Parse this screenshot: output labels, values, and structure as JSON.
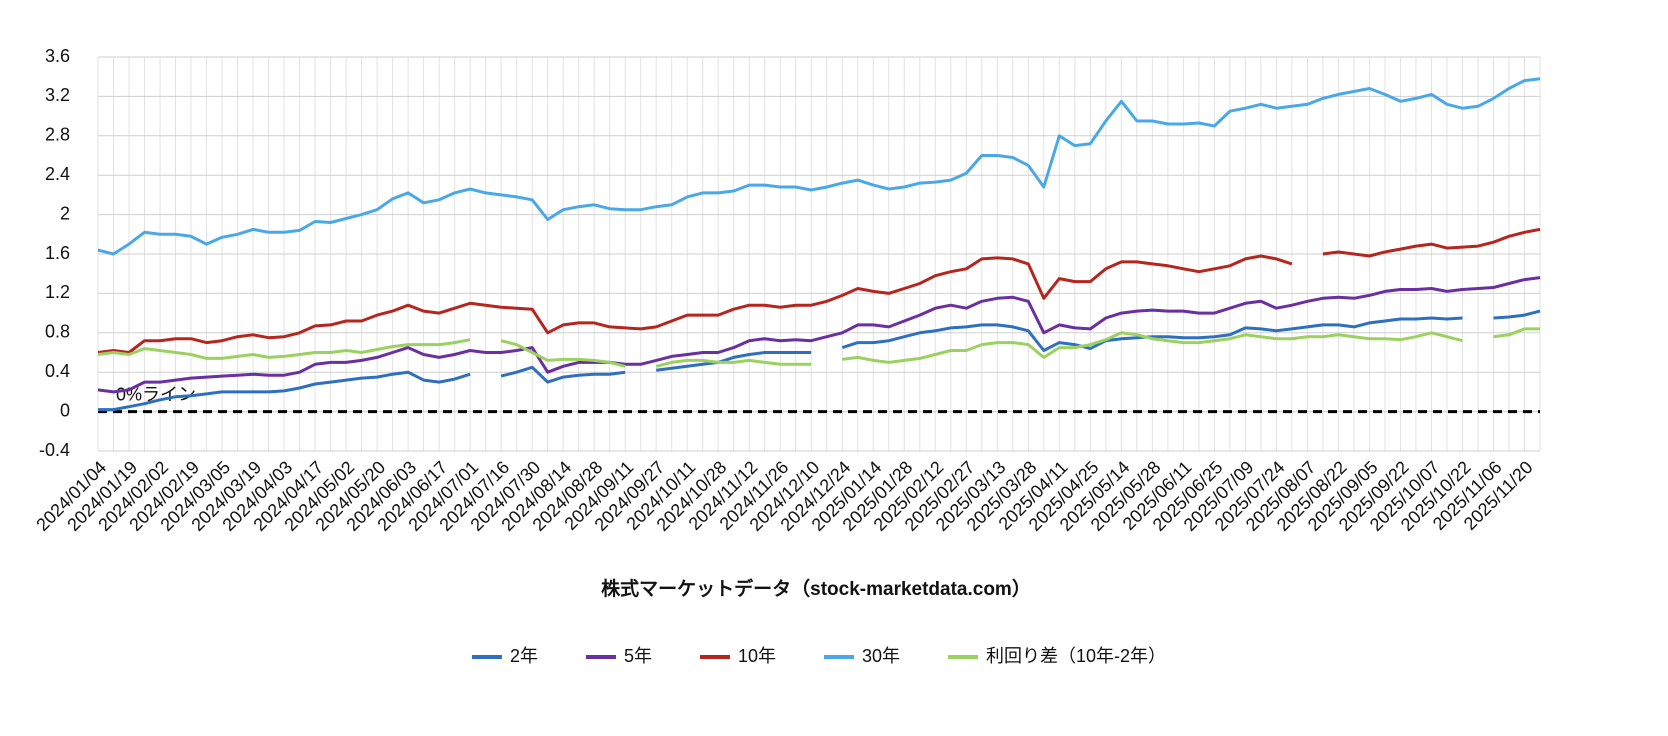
{
  "chart_data": {
    "type": "line",
    "x_label": "株式マーケットデータ（stock-marketdata.com）",
    "categories": [
      "2024/01/04",
      null,
      "2024/01/19",
      null,
      "2024/02/02",
      null,
      "2024/02/19",
      null,
      "2024/03/05",
      null,
      "2024/03/19",
      null,
      "2024/04/03",
      null,
      "2024/04/17",
      null,
      "2024/05/02",
      null,
      "2024/05/20",
      null,
      "2024/06/03",
      null,
      "2024/06/17",
      null,
      "2024/07/01",
      null,
      "2024/07/16",
      null,
      "2024/07/30",
      null,
      "2024/08/14",
      null,
      "2024/08/28",
      null,
      "2024/09/11",
      null,
      "2024/09/27",
      null,
      "2024/10/11",
      null,
      "2024/10/28",
      null,
      "2024/11/12",
      null,
      "2024/11/26",
      null,
      "2024/12/10",
      null,
      "2024/12/24",
      null,
      "2025/01/14",
      null,
      "2025/01/28",
      null,
      "2025/02/12",
      null,
      "2025/02/27",
      null,
      "2025/03/13",
      null,
      "2025/03/28",
      null,
      "2025/04/11",
      null,
      "2025/04/25",
      null,
      "2025/05/14",
      null,
      "2025/05/28",
      null,
      "2025/06/11",
      null,
      "2025/06/25",
      null,
      "2025/07/09",
      null,
      "2025/07/24",
      null,
      "2025/08/07",
      null,
      "2025/08/22",
      null,
      "2025/09/05",
      null,
      "2025/09/22",
      null,
      "2025/10/07",
      null,
      "2025/10/22",
      null,
      "2025/11/06",
      null,
      "2025/11/20",
      null
    ],
    "series": [
      {
        "name": "2年",
        "color": "#2e6fc0",
        "values": [
          0.02,
          0.02,
          0.05,
          0.08,
          0.12,
          0.15,
          0.16,
          0.18,
          0.2,
          0.2,
          0.2,
          0.2,
          0.21,
          0.24,
          0.28,
          0.3,
          0.32,
          0.34,
          0.35,
          0.38,
          0.4,
          0.32,
          0.3,
          0.33,
          0.38,
          null,
          0.36,
          0.4,
          0.45,
          0.3,
          0.35,
          0.37,
          0.38,
          0.38,
          0.4,
          null,
          0.42,
          0.44,
          0.46,
          0.48,
          0.5,
          0.55,
          0.58,
          0.6,
          0.6,
          0.6,
          0.6,
          null,
          0.65,
          0.7,
          0.7,
          0.72,
          0.76,
          0.8,
          0.82,
          0.85,
          0.86,
          0.88,
          0.88,
          0.86,
          0.82,
          0.62,
          0.7,
          0.68,
          0.64,
          0.72,
          0.74,
          0.75,
          0.76,
          0.76,
          0.75,
          0.75,
          0.76,
          0.78,
          0.85,
          0.84,
          0.82,
          0.84,
          0.86,
          0.88,
          0.88,
          0.86,
          0.9,
          0.92,
          0.94,
          0.94,
          0.95,
          0.94,
          0.95,
          null,
          0.95,
          0.96,
          0.98,
          1.02
        ]
      },
      {
        "name": "5年",
        "color": "#6a2fa0",
        "values": [
          0.22,
          0.2,
          0.22,
          0.3,
          0.3,
          0.32,
          0.34,
          0.35,
          0.36,
          0.37,
          0.38,
          0.37,
          0.37,
          0.4,
          0.48,
          0.5,
          0.5,
          0.52,
          0.55,
          0.6,
          0.65,
          0.58,
          0.55,
          0.58,
          0.62,
          0.6,
          0.6,
          0.62,
          0.65,
          0.4,
          0.46,
          0.5,
          0.5,
          0.5,
          0.48,
          0.48,
          0.52,
          0.56,
          0.58,
          0.6,
          0.6,
          0.65,
          0.72,
          0.74,
          0.72,
          0.73,
          0.72,
          0.76,
          0.8,
          0.88,
          0.88,
          0.86,
          0.92,
          0.98,
          1.05,
          1.08,
          1.05,
          1.12,
          1.15,
          1.16,
          1.12,
          0.8,
          0.88,
          0.85,
          0.84,
          0.95,
          1.0,
          1.02,
          1.03,
          1.02,
          1.02,
          1.0,
          1.0,
          1.05,
          1.1,
          1.12,
          1.05,
          1.08,
          1.12,
          1.15,
          1.16,
          1.15,
          1.18,
          1.22,
          1.24,
          1.24,
          1.25,
          1.22,
          1.24,
          1.25,
          1.26,
          1.3,
          1.34,
          1.36
        ]
      },
      {
        "name": "10年",
        "color": "#b5261e",
        "values": [
          0.6,
          0.62,
          0.6,
          0.72,
          0.72,
          0.74,
          0.74,
          0.7,
          0.72,
          0.76,
          0.78,
          0.75,
          0.76,
          0.8,
          0.87,
          0.88,
          0.92,
          0.92,
          0.98,
          1.02,
          1.08,
          1.02,
          1.0,
          1.05,
          1.1,
          1.08,
          1.06,
          1.05,
          1.04,
          0.8,
          0.88,
          0.9,
          0.9,
          0.86,
          0.85,
          0.84,
          0.86,
          0.92,
          0.98,
          0.98,
          0.98,
          1.04,
          1.08,
          1.08,
          1.06,
          1.08,
          1.08,
          1.12,
          1.18,
          1.25,
          1.22,
          1.2,
          1.25,
          1.3,
          1.38,
          1.42,
          1.45,
          1.55,
          1.56,
          1.55,
          1.5,
          1.15,
          1.35,
          1.32,
          1.32,
          1.45,
          1.52,
          1.52,
          1.5,
          1.48,
          1.45,
          1.42,
          1.45,
          1.48,
          1.55,
          1.58,
          1.55,
          1.5,
          null,
          1.6,
          1.62,
          1.6,
          1.58,
          1.62,
          1.65,
          1.68,
          1.7,
          1.66,
          1.67,
          1.68,
          1.72,
          1.78,
          1.82,
          1.85
        ]
      },
      {
        "name": "30年",
        "color": "#4aa8e8",
        "values": [
          1.64,
          1.6,
          1.7,
          1.82,
          1.8,
          1.8,
          1.78,
          1.7,
          1.77,
          1.8,
          1.85,
          1.82,
          1.82,
          1.84,
          1.93,
          1.92,
          1.96,
          2.0,
          2.05,
          2.16,
          2.22,
          2.12,
          2.15,
          2.22,
          2.26,
          2.22,
          2.2,
          2.18,
          2.15,
          1.95,
          2.05,
          2.08,
          2.1,
          2.06,
          2.05,
          2.05,
          2.08,
          2.1,
          2.18,
          2.22,
          2.22,
          2.24,
          2.3,
          2.3,
          2.28,
          2.28,
          2.25,
          2.28,
          2.32,
          2.35,
          2.3,
          2.26,
          2.28,
          2.32,
          2.33,
          2.35,
          2.42,
          2.6,
          2.6,
          2.58,
          2.5,
          2.28,
          2.8,
          2.7,
          2.72,
          2.95,
          3.15,
          2.95,
          2.95,
          2.92,
          2.92,
          2.93,
          2.9,
          3.05,
          3.08,
          3.12,
          3.08,
          3.1,
          3.12,
          3.18,
          3.22,
          3.25,
          3.28,
          3.22,
          3.15,
          3.18,
          3.22,
          3.12,
          3.08,
          3.1,
          3.18,
          3.28,
          3.36,
          3.38
        ]
      },
      {
        "name": "利回り差（10年-2年）",
        "color": "#9bd160",
        "values": [
          0.58,
          0.6,
          0.58,
          0.64,
          0.62,
          0.6,
          0.58,
          0.54,
          0.54,
          0.56,
          0.58,
          0.55,
          0.56,
          0.58,
          0.6,
          0.6,
          0.62,
          0.6,
          0.63,
          0.66,
          0.68,
          0.68,
          0.68,
          0.7,
          0.73,
          null,
          0.72,
          0.68,
          0.6,
          0.52,
          0.53,
          0.53,
          0.52,
          0.5,
          0.46,
          null,
          0.46,
          0.5,
          0.52,
          0.52,
          0.5,
          0.5,
          0.52,
          0.5,
          0.48,
          0.48,
          0.48,
          null,
          0.53,
          0.55,
          0.52,
          0.5,
          0.52,
          0.54,
          0.58,
          0.62,
          0.62,
          0.68,
          0.7,
          0.7,
          0.68,
          0.55,
          0.65,
          0.65,
          0.68,
          0.73,
          0.8,
          0.78,
          0.74,
          0.72,
          0.7,
          0.7,
          0.72,
          0.74,
          0.78,
          0.76,
          0.74,
          0.74,
          0.76,
          0.76,
          0.78,
          0.76,
          0.74,
          0.74,
          0.73,
          0.76,
          0.8,
          0.76,
          0.72,
          null,
          0.76,
          0.78,
          0.84,
          0.84
        ]
      }
    ],
    "annotations": [
      {
        "text": "0%ライン",
        "y": 0
      }
    ],
    "ylim": [
      -0.4,
      3.6
    ],
    "yticks": [
      -0.4,
      0,
      0.4,
      0.8,
      1.2,
      1.6,
      2,
      2.4,
      2.8,
      3.2,
      3.6
    ],
    "grid": true,
    "legend": "bottom"
  }
}
